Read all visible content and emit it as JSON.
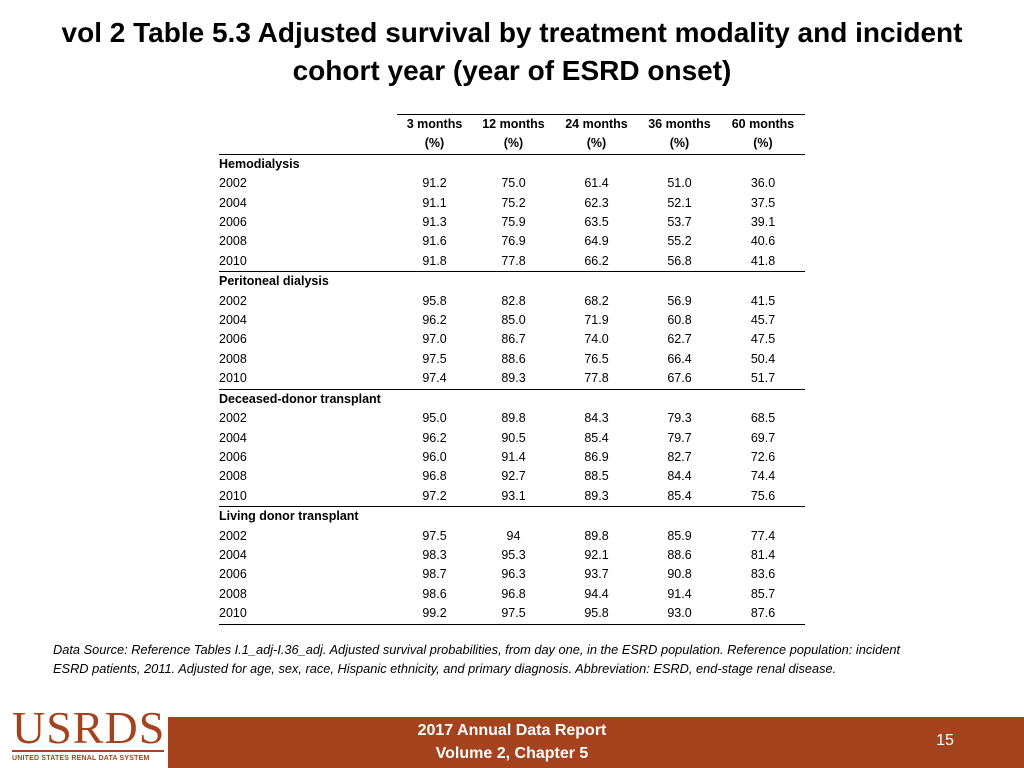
{
  "title": "vol 2 Table 5.3 Adjusted survival by treatment modality and incident cohort year (year of ESRD onset)",
  "table": {
    "columns": [
      {
        "label": "3 months",
        "unit": "(%)"
      },
      {
        "label": "12 months",
        "unit": "(%)"
      },
      {
        "label": "24 months",
        "unit": "(%)"
      },
      {
        "label": "36 months",
        "unit": "(%)"
      },
      {
        "label": "60 months",
        "unit": "(%)"
      }
    ],
    "groups": [
      {
        "label": "Hemodialysis",
        "rows": [
          {
            "year": "2002",
            "values": [
              "91.2",
              "75.0",
              "61.4",
              "51.0",
              "36.0"
            ]
          },
          {
            "year": "2004",
            "values": [
              "91.1",
              "75.2",
              "62.3",
              "52.1",
              "37.5"
            ]
          },
          {
            "year": "2006",
            "values": [
              "91.3",
              "75.9",
              "63.5",
              "53.7",
              "39.1"
            ]
          },
          {
            "year": "2008",
            "values": [
              "91.6",
              "76.9",
              "64.9",
              "55.2",
              "40.6"
            ]
          },
          {
            "year": "2010",
            "values": [
              "91.8",
              "77.8",
              "66.2",
              "56.8",
              "41.8"
            ]
          }
        ]
      },
      {
        "label": "Peritoneal dialysis",
        "rows": [
          {
            "year": "2002",
            "values": [
              "95.8",
              "82.8",
              "68.2",
              "56.9",
              "41.5"
            ]
          },
          {
            "year": "2004",
            "values": [
              "96.2",
              "85.0",
              "71.9",
              "60.8",
              "45.7"
            ]
          },
          {
            "year": "2006",
            "values": [
              "97.0",
              "86.7",
              "74.0",
              "62.7",
              "47.5"
            ]
          },
          {
            "year": "2008",
            "values": [
              "97.5",
              "88.6",
              "76.5",
              "66.4",
              "50.4"
            ]
          },
          {
            "year": "2010",
            "values": [
              "97.4",
              "89.3",
              "77.8",
              "67.6",
              "51.7"
            ]
          }
        ]
      },
      {
        "label": "Deceased-donor transplant",
        "rows": [
          {
            "year": "2002",
            "values": [
              "95.0",
              "89.8",
              "84.3",
              "79.3",
              "68.5"
            ]
          },
          {
            "year": "2004",
            "values": [
              "96.2",
              "90.5",
              "85.4",
              "79.7",
              "69.7"
            ]
          },
          {
            "year": "2006",
            "values": [
              "96.0",
              "91.4",
              "86.9",
              "82.7",
              "72.6"
            ]
          },
          {
            "year": "2008",
            "values": [
              "96.8",
              "92.7",
              "88.5",
              "84.4",
              "74.4"
            ]
          },
          {
            "year": "2010",
            "values": [
              "97.2",
              "93.1",
              "89.3",
              "85.4",
              "75.6"
            ]
          }
        ]
      },
      {
        "label": "Living donor transplant",
        "rows": [
          {
            "year": "2002",
            "values": [
              "97.5",
              "94",
              "89.8",
              "85.9",
              "77.4"
            ]
          },
          {
            "year": "2004",
            "values": [
              "98.3",
              "95.3",
              "92.1",
              "88.6",
              "81.4"
            ]
          },
          {
            "year": "2006",
            "values": [
              "98.7",
              "96.3",
              "93.7",
              "90.8",
              "83.6"
            ]
          },
          {
            "year": "2008",
            "values": [
              "98.6",
              "96.8",
              "94.4",
              "91.4",
              "85.7"
            ]
          },
          {
            "year": "2010",
            "values": [
              "99.2",
              "97.5",
              "95.8",
              "93.0",
              "87.6"
            ]
          }
        ]
      }
    ]
  },
  "footnote": "Data Source: Reference Tables I.1_adj-I.36_adj. Adjusted survival probabilities, from day one, in the ESRD population. Reference population: incident ESRD patients, 2011. Adjusted for age, sex, race, Hispanic ethnicity, and primary diagnosis. Abbreviation: ESRD, end-stage renal disease.",
  "footer": {
    "logo_text": "USRDS",
    "logo_subtext": "UNITED STATES RENAL DATA SYSTEM",
    "report_line1": "2017 Annual Data Report",
    "report_line2": "Volume 2, Chapter 5",
    "page_number": "15",
    "bar_color": "#a5431e"
  }
}
